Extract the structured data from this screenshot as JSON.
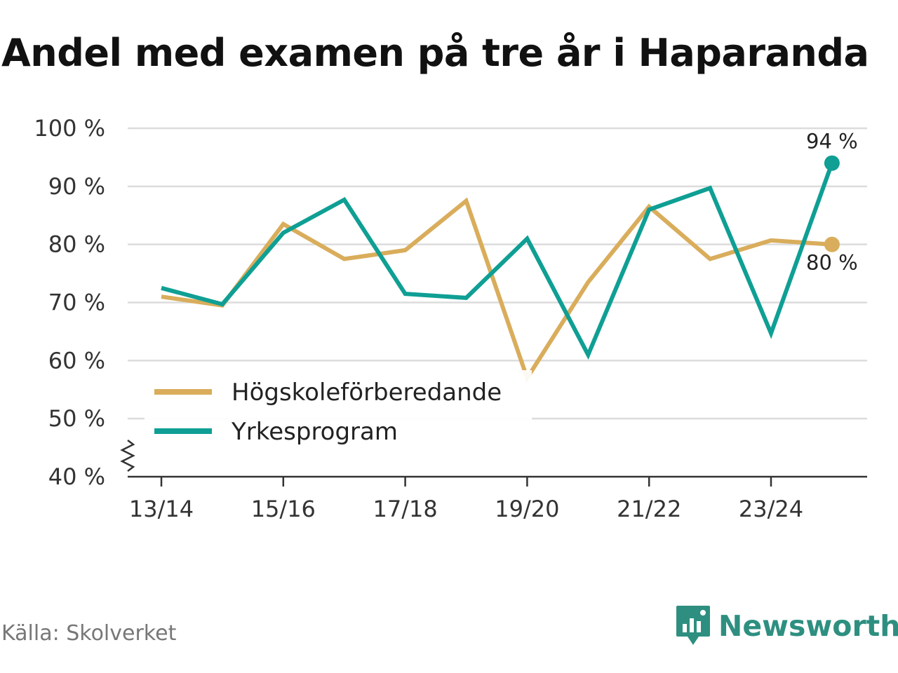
{
  "chart_data": {
    "type": "line",
    "title": "Andel med examen på tre år i Haparanda",
    "x": [
      "13/14",
      "14/15",
      "15/16",
      "16/17",
      "17/18",
      "18/19",
      "19/20",
      "20/21",
      "21/22",
      "22/23",
      "23/24",
      "24/25"
    ],
    "x_tick_labels": [
      "13/14",
      "15/16",
      "17/18",
      "19/20",
      "21/22",
      "23/24"
    ],
    "y_tick_labels": [
      "40 %",
      "50 %",
      "60 %",
      "70 %",
      "80 %",
      "90 %",
      "100 %"
    ],
    "ylim": [
      40,
      100
    ],
    "y_axis_break": true,
    "grid": true,
    "legend_position": "bottom-left",
    "series": [
      {
        "name": "Högskoleförberedande",
        "color": "#d9ad5b",
        "values": [
          71,
          69.5,
          83.5,
          77.5,
          79,
          87.5,
          57,
          73.5,
          86.5,
          77.5,
          80.7,
          80
        ],
        "end_label": "80 %"
      },
      {
        "name": "Yrkesprogram",
        "color": "#0f9f94",
        "values": [
          72.5,
          69.7,
          82,
          87.7,
          71.5,
          70.8,
          81,
          61,
          86,
          89.7,
          64.7,
          94
        ],
        "end_label": "94 %"
      }
    ]
  },
  "footer": {
    "source": "Källa: Skolverket",
    "brand": "Newsworthy"
  }
}
